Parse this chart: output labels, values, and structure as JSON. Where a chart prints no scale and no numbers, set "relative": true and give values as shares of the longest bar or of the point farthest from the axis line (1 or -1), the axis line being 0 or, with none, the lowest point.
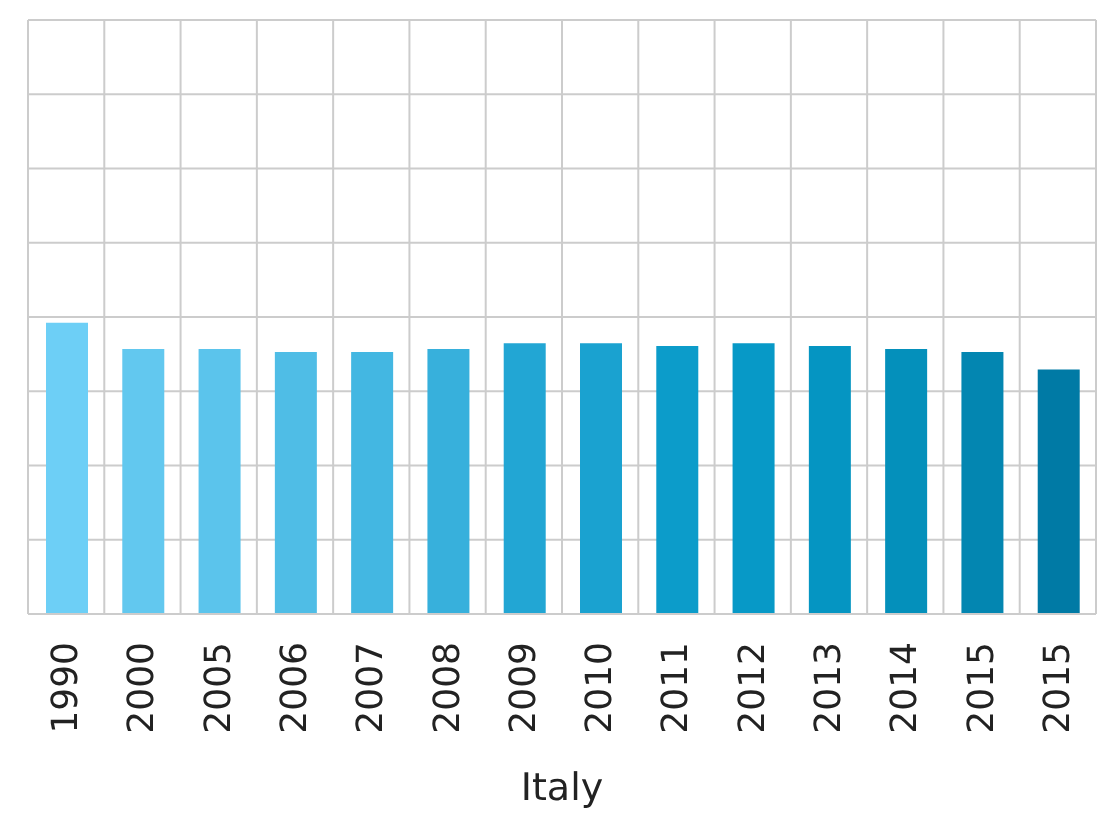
{
  "chart_data": {
    "type": "bar",
    "relative": true,
    "xlabel": "Italy",
    "grid": true,
    "categories": [
      "1990",
      "2000",
      "2005",
      "2006",
      "2007",
      "2008",
      "2009",
      "2010",
      "2011",
      "2012",
      "2013",
      "2014",
      "2015",
      "2015"
    ],
    "values": [
      1,
      0.91,
      0.91,
      0.9,
      0.9,
      0.91,
      0.93,
      0.93,
      0.92,
      0.93,
      0.92,
      0.91,
      0.9,
      0.84
    ],
    "colors": [
      "#6dcff6",
      "#62c8ef",
      "#5bc4ec",
      "#4fbde6",
      "#43b7e2",
      "#37b0dc",
      "#22a6d4",
      "#1aa2d0",
      "#0c9cca",
      "#0799c7",
      "#0595c2",
      "#0490bb",
      "#0386b1",
      "#007aa5"
    ]
  }
}
